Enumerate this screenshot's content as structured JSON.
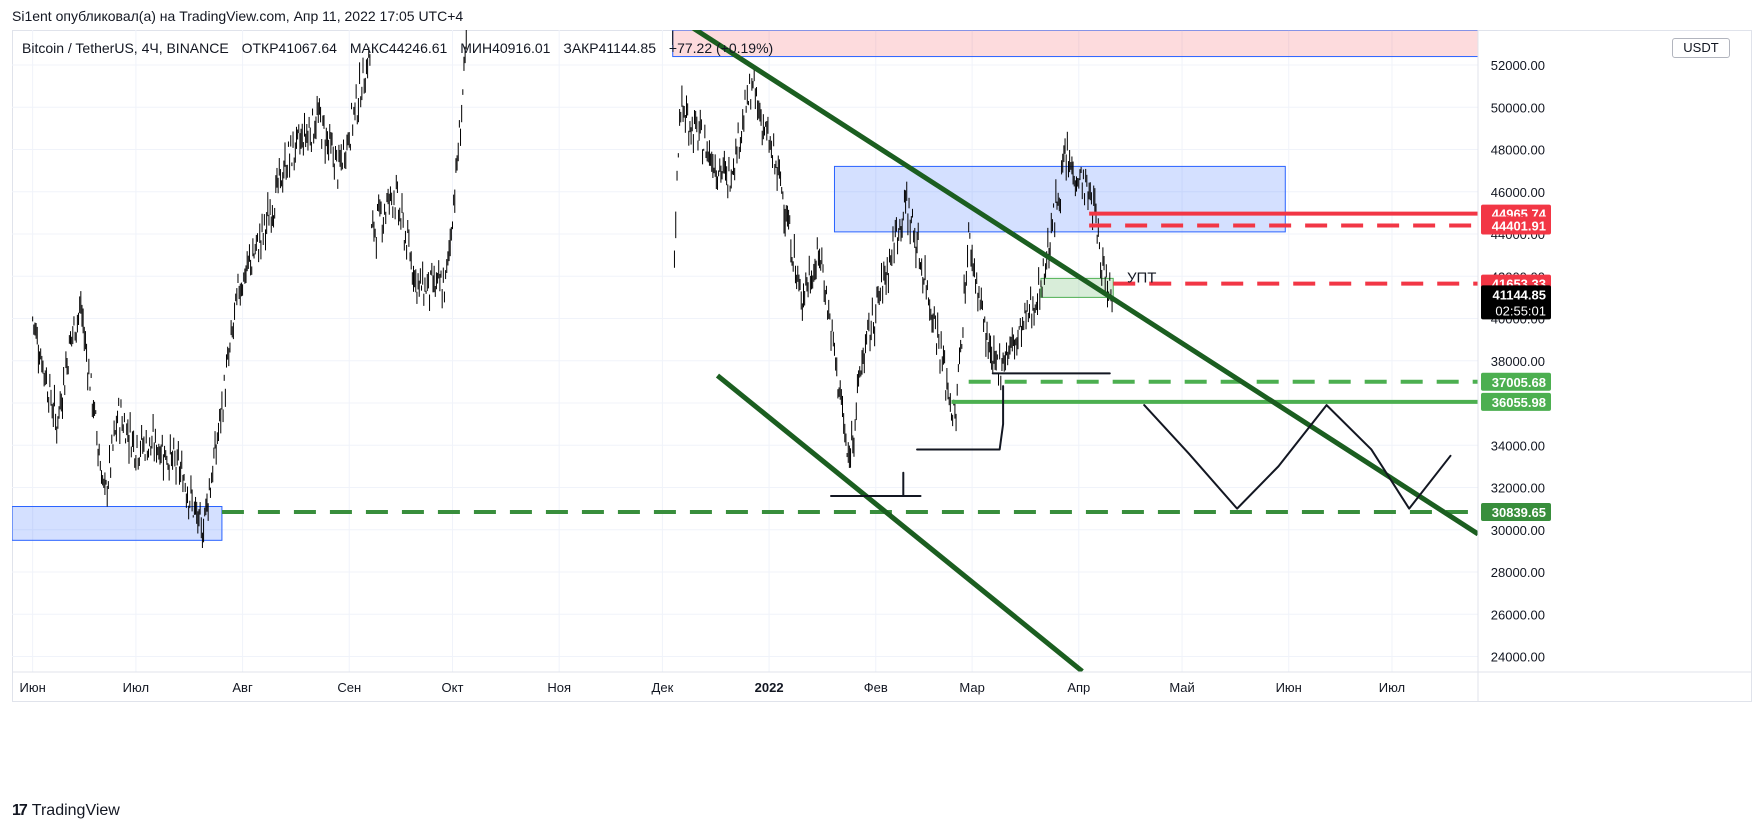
{
  "header": {
    "text": "Si1ent опубликовал(а) на TradingView.com, Апр 11, 2022 17:05 UTC+4"
  },
  "symbol": {
    "name": "Bitcoin / TetherUS, 4Ч, BINANCE",
    "open": "ОТКР41067.64",
    "high": "МАКС44246.61",
    "low": "МИН40916.01",
    "close": "ЗАКР41144.85",
    "change": "+77.22 (+0.19%)"
  },
  "currency": "USDT",
  "footer": {
    "brand": "TradingView"
  },
  "chart_data": {
    "type": "candlestick",
    "timeframe": "4Ч",
    "x_tick_labels": [
      "Июн",
      "Июл",
      "Авг",
      "Сен",
      "Окт",
      "Ноя",
      "Дек",
      "2022",
      "Фев",
      "Мар",
      "Апр",
      "Май",
      "Июн",
      "Июл"
    ],
    "y_tick_labels": [
      "52000.00",
      "50000.00",
      "48000.00",
      "46000.00",
      "44000.00",
      "42000.00",
      "40000.00",
      "38000.00",
      "36000.00",
      "34000.00",
      "32000.00",
      "30000.00",
      "28000.00",
      "26000.00",
      "24000.00"
    ],
    "y_ticks": [
      52000,
      50000,
      48000,
      46000,
      44000,
      42000,
      40000,
      38000,
      36000,
      34000,
      32000,
      30000,
      28000,
      26000,
      24000
    ],
    "ylim": [
      23300,
      54200
    ],
    "grid": true,
    "price_path": [
      [
        "2021-06-01",
        40000
      ],
      [
        "2021-06-08",
        35000
      ],
      [
        "2021-06-12",
        39000
      ],
      [
        "2021-06-15",
        40500
      ],
      [
        "2021-06-22",
        31500
      ],
      [
        "2021-06-26",
        35500
      ],
      [
        "2021-07-01",
        34000
      ],
      [
        "2021-07-08",
        34000
      ],
      [
        "2021-07-15",
        32500
      ],
      [
        "2021-07-20",
        29800
      ],
      [
        "2021-07-24",
        33500
      ],
      [
        "2021-07-31",
        41500
      ],
      [
        "2021-08-07",
        44000
      ],
      [
        "2021-08-14",
        47500
      ],
      [
        "2021-08-23",
        49500
      ],
      [
        "2021-08-29",
        47000
      ],
      [
        "2021-09-07",
        52500
      ],
      [
        "2021-09-07T12",
        44000
      ],
      [
        "2021-09-14",
        46000
      ],
      [
        "2021-09-21",
        41500
      ],
      [
        "2021-09-29",
        41500
      ],
      [
        "2021-10-03",
        48500
      ],
      [
        "2021-10-06",
        55000
      ],
      [
        "2021-12-04",
        53000
      ],
      [
        "2021-12-04T12",
        43000
      ],
      [
        "2021-12-06",
        50000
      ],
      [
        "2021-12-20",
        46500
      ],
      [
        "2021-12-27",
        51000
      ],
      [
        "2022-01-05",
        46000
      ],
      [
        "2022-01-10",
        41000
      ],
      [
        "2022-01-16",
        43000
      ],
      [
        "2022-01-22",
        36000
      ],
      [
        "2022-01-24",
        33000
      ],
      [
        "2022-01-28",
        38000
      ],
      [
        "2022-02-07",
        44000
      ],
      [
        "2022-02-10",
        45500
      ],
      [
        "2022-02-18",
        40000
      ],
      [
        "2022-02-24",
        35000
      ],
      [
        "2022-02-28",
        43800
      ],
      [
        "2022-03-07",
        37500
      ],
      [
        "2022-03-14",
        39000
      ],
      [
        "2022-03-21",
        41500
      ],
      [
        "2022-03-28",
        47500
      ],
      [
        "2022-04-02",
        46500
      ],
      [
        "2022-04-06",
        45000
      ],
      [
        "2022-04-07",
        43000
      ],
      [
        "2022-04-11",
        41144.85
      ]
    ],
    "price_tags": [
      {
        "value": 44965.74,
        "label": "44965.74",
        "color": "#f23645"
      },
      {
        "value": 44401.91,
        "label": "44401.91",
        "color": "#f23645"
      },
      {
        "value": 41653.33,
        "label": "41653.33",
        "color": "#f23645"
      },
      {
        "value": 41144.85,
        "label": "41144.85",
        "countdown": "02:55:01",
        "color": "#000000"
      },
      {
        "value": 37005.68,
        "label": "37005.68",
        "color": "#4caf50"
      },
      {
        "value": 36055.98,
        "label": "36055.98",
        "color": "#4caf50"
      },
      {
        "value": 30839.65,
        "label": "30839.65",
        "color": "#388e3c"
      }
    ],
    "annotations": {
      "upt_label": "УПТ"
    },
    "colors": {
      "trendline": "#1b5e20",
      "red": "#f23645",
      "green": "#4caf50",
      "dark_green": "#388e3c",
      "zone_blue": "#2962ff",
      "zone_red": "#f23645",
      "candle": "#000000"
    }
  }
}
